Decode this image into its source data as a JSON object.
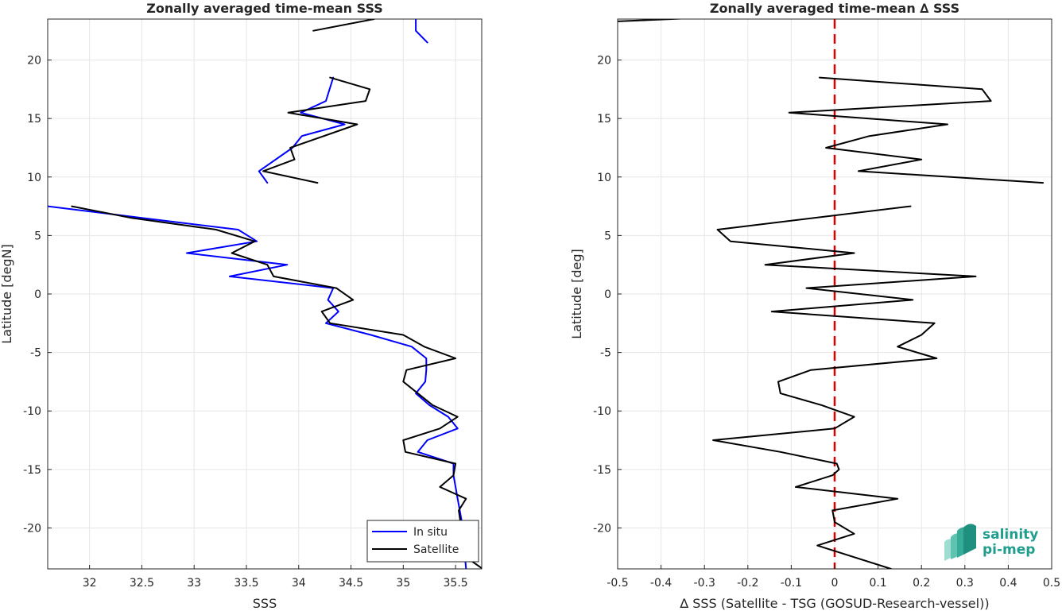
{
  "chart_data": [
    {
      "type": "line",
      "title": "Zonally averaged time-mean SSS",
      "xlabel": "SSS",
      "ylabel": "Latitude [degN]",
      "xlim": [
        31.6,
        35.75
      ],
      "ylim": [
        -23.5,
        23.5
      ],
      "xticks": [
        "32",
        "32.5",
        "33",
        "33.5",
        "34",
        "34.5",
        "35",
        "35.5"
      ],
      "yticks": [
        "20",
        "15",
        "10",
        "5",
        "0",
        "-5",
        "-10",
        "-15",
        "-20"
      ],
      "grid": true,
      "legend": {
        "position": "bottom-right",
        "entries": [
          "In situ",
          "Satellite"
        ]
      },
      "series": [
        {
          "name": "In situ",
          "color": "#0000ff",
          "segments": [
            [
              [
                35.12,
                23.5
              ],
              [
                35.12,
                22.5
              ],
              [
                35.23,
                21.5
              ]
            ],
            [
              [
                34.33,
                18.5
              ],
              [
                34.26,
                16.5
              ],
              [
                34.02,
                15.5
              ],
              [
                34.44,
                14.5
              ],
              [
                34.03,
                13.5
              ],
              [
                33.94,
                12.5
              ],
              [
                33.62,
                10.5
              ],
              [
                33.7,
                9.5
              ]
            ],
            [
              [
                31.6,
                7.5
              ],
              [
                32.5,
                6.5
              ],
              [
                33.42,
                5.5
              ],
              [
                33.6,
                4.5
              ],
              [
                32.93,
                3.5
              ],
              [
                33.89,
                2.5
              ],
              [
                33.34,
                1.5
              ],
              [
                34.33,
                0.5
              ],
              [
                34.28,
                -0.5
              ],
              [
                34.38,
                -1.5
              ],
              [
                34.26,
                -2.5
              ],
              [
                34.69,
                -3.5
              ],
              [
                35.08,
                -4.5
              ],
              [
                35.22,
                -5.5
              ],
              [
                35.22,
                -6.5
              ],
              [
                35.21,
                -7.5
              ],
              [
                35.12,
                -8.5
              ],
              [
                35.25,
                -9.5
              ],
              [
                35.43,
                -10.5
              ],
              [
                35.52,
                -11.5
              ],
              [
                35.23,
                -12.5
              ],
              [
                35.14,
                -13.5
              ],
              [
                35.48,
                -14.5
              ],
              [
                35.48,
                -15.5
              ],
              [
                35.5,
                -16.5
              ],
              [
                35.52,
                -17.5
              ],
              [
                35.54,
                -18.5
              ],
              [
                35.56,
                -19.5
              ],
              [
                35.6,
                -23.5
              ]
            ]
          ]
        },
        {
          "name": "Satellite",
          "color": "#000000",
          "segments": [
            [
              [
                34.14,
                22.5
              ],
              [
                34.72,
                23.5
              ]
            ],
            [
              [
                34.3,
                18.5
              ],
              [
                34.68,
                17.5
              ],
              [
                34.64,
                16.5
              ],
              [
                33.9,
                15.5
              ],
              [
                34.56,
                14.5
              ],
              [
                33.92,
                12.5
              ],
              [
                33.96,
                11.5
              ],
              [
                33.66,
                10.5
              ],
              [
                34.18,
                9.5
              ]
            ],
            [
              [
                31.83,
                7.5
              ],
              [
                32.4,
                6.5
              ],
              [
                33.21,
                5.5
              ],
              [
                33.58,
                4.5
              ],
              [
                33.36,
                3.5
              ],
              [
                33.7,
                2.5
              ],
              [
                33.76,
                1.5
              ],
              [
                34.36,
                0.5
              ],
              [
                34.52,
                -0.5
              ],
              [
                34.22,
                -1.5
              ],
              [
                34.3,
                -2.5
              ],
              [
                35.0,
                -3.5
              ],
              [
                35.2,
                -4.5
              ],
              [
                35.5,
                -5.5
              ],
              [
                35.03,
                -6.5
              ],
              [
                35.0,
                -7.5
              ],
              [
                35.28,
                -9.5
              ],
              [
                35.52,
                -10.5
              ],
              [
                35.35,
                -11.5
              ],
              [
                35.0,
                -12.5
              ],
              [
                35.02,
                -13.5
              ],
              [
                35.5,
                -14.5
              ],
              [
                35.48,
                -15.5
              ],
              [
                35.35,
                -16.5
              ],
              [
                35.6,
                -17.5
              ],
              [
                35.53,
                -18.5
              ],
              [
                35.58,
                -21.5
              ],
              [
                35.6,
                -22.5
              ],
              [
                35.76,
                -23.5
              ]
            ]
          ]
        }
      ]
    },
    {
      "type": "line",
      "title": "Zonally averaged time-mean ∆ SSS",
      "xlabel": "∆ SSS (Satellite - TSG (GOSUD-Research-vessel))",
      "ylabel": "Latitude [deg]",
      "xlim": [
        -0.5,
        0.5
      ],
      "ylim": [
        -23.5,
        23.5
      ],
      "xticks": [
        "-0.5",
        "-0.4",
        "-0.3",
        "-0.2",
        "-0.1",
        "0",
        "0.1",
        "0.2",
        "0.3",
        "0.4",
        "0.5"
      ],
      "yticks": [
        "20",
        "15",
        "10",
        "5",
        "0",
        "-5",
        "-10",
        "-15",
        "-20"
      ],
      "grid": true,
      "reference_line": {
        "x": 0,
        "color": "#dd0000",
        "style": "dashed"
      },
      "series": [
        {
          "color": "#000000",
          "segments": [
            [
              [
                -0.5,
                23.3
              ],
              [
                -0.31,
                23.6
              ]
            ],
            [
              [
                -0.035,
                18.5
              ],
              [
                0.34,
                17.5
              ],
              [
                0.36,
                16.5
              ],
              [
                -0.105,
                15.5
              ],
              [
                0.26,
                14.5
              ],
              [
                0.08,
                13.5
              ],
              [
                -0.02,
                12.5
              ],
              [
                0.2,
                11.5
              ],
              [
                0.055,
                10.5
              ],
              [
                0.48,
                9.5
              ]
            ],
            [
              [
                0.175,
                7.5
              ],
              [
                -0.27,
                5.5
              ],
              [
                -0.24,
                4.5
              ],
              [
                0.045,
                3.5
              ],
              [
                -0.16,
                2.5
              ],
              [
                0.325,
                1.5
              ],
              [
                -0.065,
                0.5
              ],
              [
                0.18,
                -0.5
              ],
              [
                -0.145,
                -1.5
              ],
              [
                0.23,
                -2.5
              ],
              [
                0.2,
                -3.5
              ],
              [
                0.145,
                -4.5
              ],
              [
                0.235,
                -5.5
              ],
              [
                -0.055,
                -6.5
              ],
              [
                -0.13,
                -7.5
              ],
              [
                -0.125,
                -8.5
              ],
              [
                -0.03,
                -9.5
              ],
              [
                0.045,
                -10.5
              ],
              [
                0.0,
                -11.5
              ],
              [
                -0.28,
                -12.5
              ],
              [
                -0.125,
                -13.5
              ],
              [
                0.005,
                -14.5
              ],
              [
                0.01,
                -15
              ],
              [
                -0.005,
                -15.5
              ],
              [
                -0.09,
                -16.5
              ],
              [
                0.145,
                -17.5
              ],
              [
                -0.005,
                -18.5
              ],
              [
                0.0,
                -19.5
              ],
              [
                0.045,
                -20.5
              ],
              [
                -0.04,
                -21.5
              ],
              [
                0.13,
                -23.5
              ]
            ]
          ]
        }
      ]
    }
  ],
  "logo": {
    "line1": "salinity",
    "line2": "pi-mep",
    "color": "#1f9e8f"
  }
}
